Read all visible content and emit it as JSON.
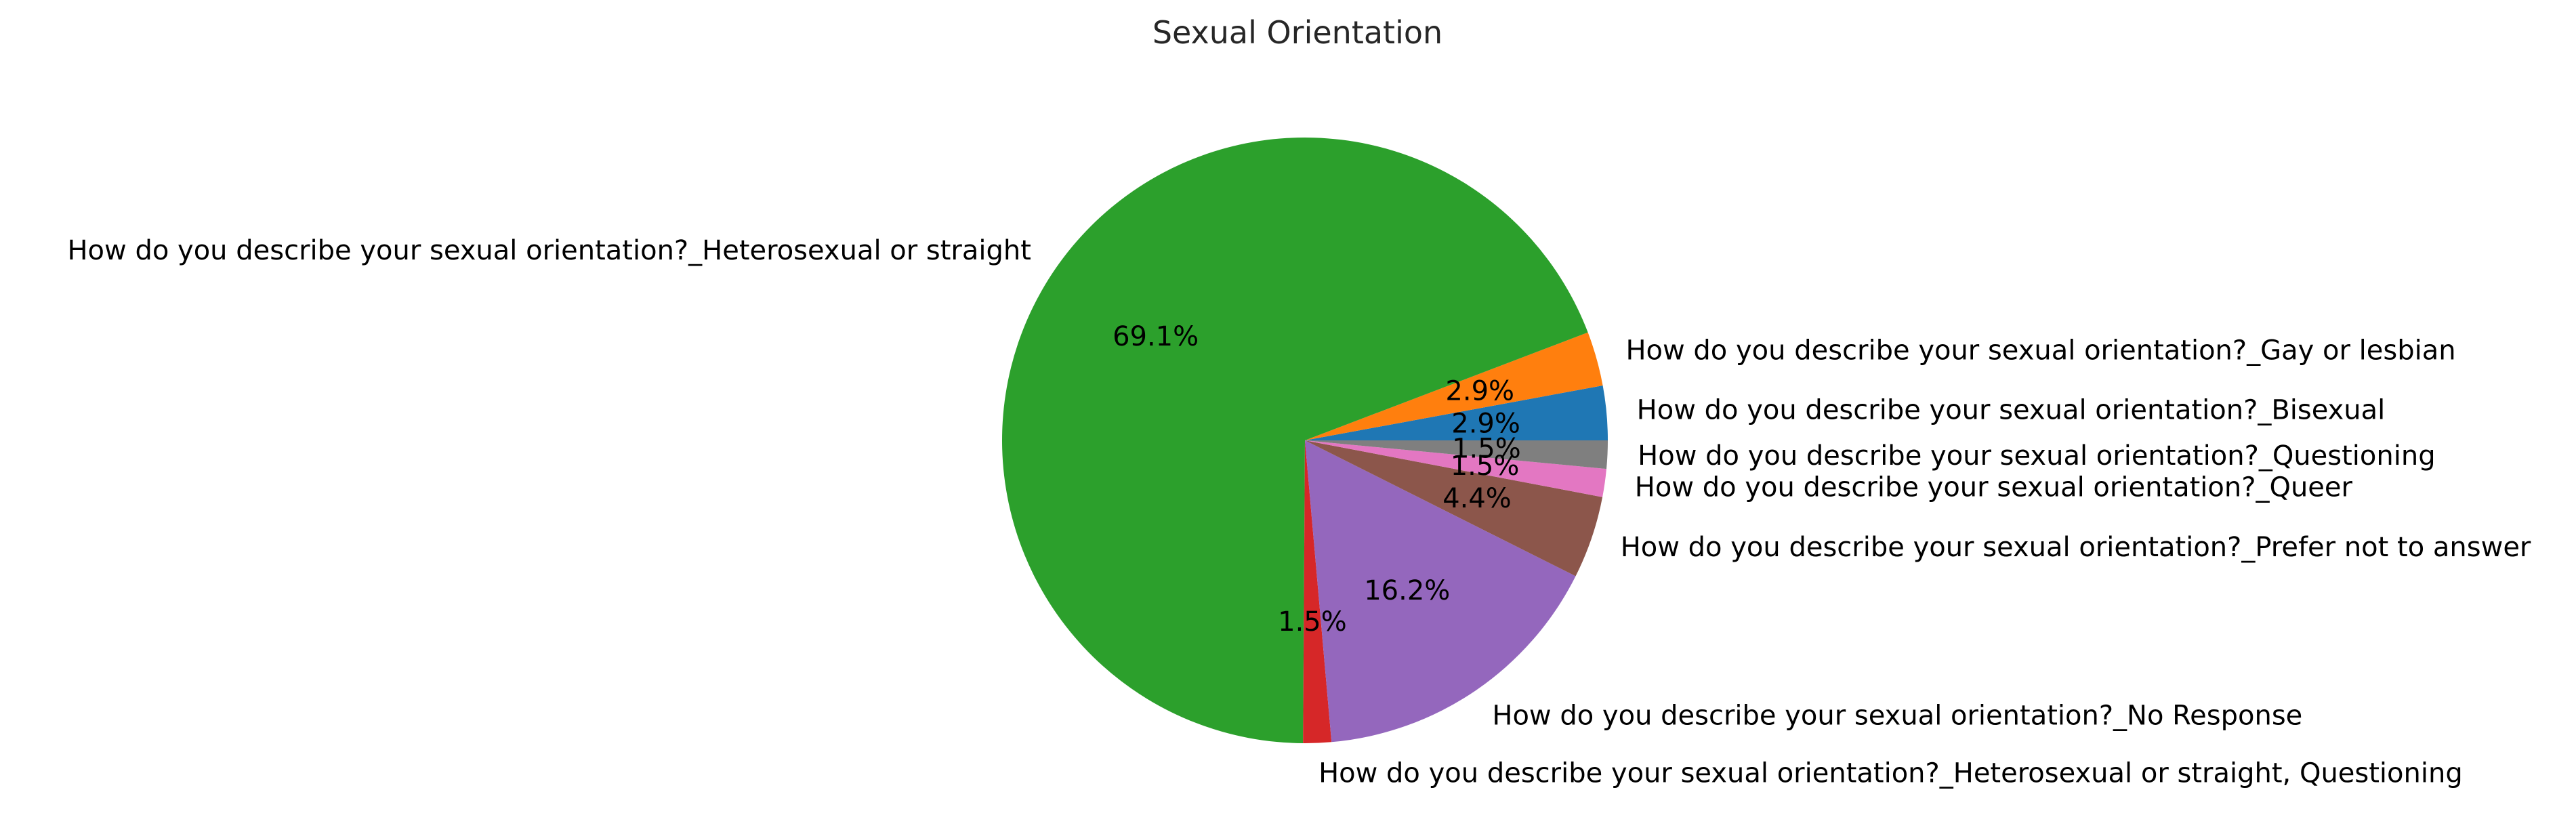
{
  "chart_data": {
    "type": "pie",
    "title": "Sexual Orientation",
    "start_angle_deg": 0,
    "direction": "counterclockwise",
    "slices": [
      {
        "label": "How do you describe your sexual orientation?_Bisexual",
        "value": 2.9,
        "pct_label": "2.9%",
        "color": "#1f77b4"
      },
      {
        "label": "How do you describe your sexual orientation?_Gay or lesbian",
        "value": 2.9,
        "pct_label": "2.9%",
        "color": "#ff7f0e"
      },
      {
        "label": "How do you describe your sexual orientation?_Heterosexual or straight",
        "value": 69.1,
        "pct_label": "69.1%",
        "color": "#2ca02c"
      },
      {
        "label": "How do you describe your sexual orientation?_Heterosexual or straight, Questioning",
        "value": 1.5,
        "pct_label": "1.5%",
        "color": "#d62728"
      },
      {
        "label": "How do you describe your sexual orientation?_No Response",
        "value": 16.2,
        "pct_label": "16.2%",
        "color": "#9467bd"
      },
      {
        "label": "How do you describe your sexual orientation?_Prefer not to answer",
        "value": 4.4,
        "pct_label": "4.4%",
        "color": "#8c564b"
      },
      {
        "label": "How do you describe your sexual orientation?_Queer",
        "value": 1.5,
        "pct_label": "1.5%",
        "color": "#e377c2"
      },
      {
        "label": "How do you describe your sexual orientation?_Questioning",
        "value": 1.5,
        "pct_label": "1.5%",
        "color": "#7f7f7f"
      }
    ]
  }
}
